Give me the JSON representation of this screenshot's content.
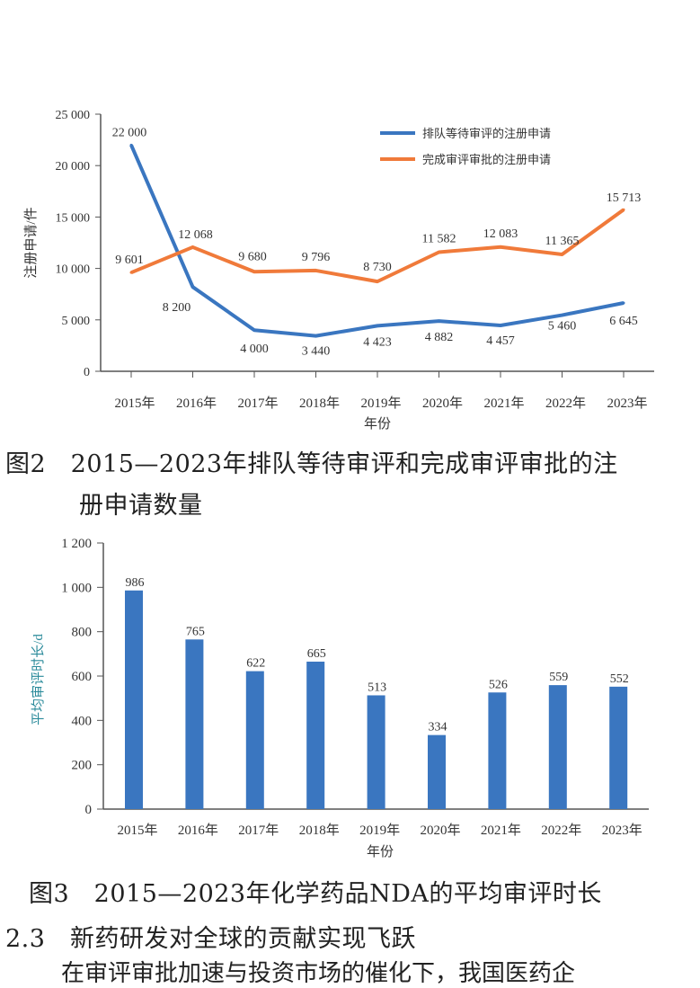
{
  "colors": {
    "blue": "#3a76c0",
    "orange": "#f07a3a",
    "axis": "#555555",
    "ylabel2": "#2a8a9a"
  },
  "figure2": {
    "caption_line1": "图2　2015—2023年排队等待审评和完成审评审批的注",
    "caption_line2": "册申请数量"
  },
  "figure3": {
    "caption": "图3　2015—2023年化学药品NDA的平均审评时长"
  },
  "section": {
    "heading": "2.3　新药研发对全球的贡献实现飞跃",
    "partial_text": "在审评审批加速与投资市场的催化下，我国医药企"
  },
  "chart_data": [
    {
      "type": "line",
      "title": "",
      "xlabel": "年份",
      "ylabel": "注册申请/件",
      "ylim": [
        0,
        25000
      ],
      "yticks": [
        "0",
        "5 000",
        "10 000",
        "15 000",
        "20 000",
        "25 000"
      ],
      "ytick_values": [
        0,
        5000,
        10000,
        15000,
        20000,
        25000
      ],
      "categories": [
        "2015年",
        "2016年",
        "2017年",
        "2018年",
        "2019年",
        "2020年",
        "2021年",
        "2022年",
        "2023年"
      ],
      "legend_position": "top-right",
      "series": [
        {
          "name": "排队等待审评的注册申请",
          "color": "#3a76c0",
          "values": [
            22000,
            8200,
            4000,
            3440,
            4423,
            4882,
            4457,
            5460,
            6645
          ],
          "labels": [
            "22 000",
            "8 200",
            "4 000",
            "3 440",
            "4 423",
            "4 882",
            "4 457",
            "5 460",
            "6 645"
          ]
        },
        {
          "name": "完成审评审批的注册申请",
          "color": "#f07a3a",
          "values": [
            9601,
            12068,
            9680,
            9796,
            8730,
            11582,
            12083,
            11365,
            15713
          ],
          "labels": [
            "9 601",
            "12 068",
            "9 680",
            "9 796",
            "8 730",
            "11 582",
            "12 083",
            "11 365",
            "15 713"
          ]
        }
      ]
    },
    {
      "type": "bar",
      "title": "",
      "xlabel": "年份",
      "ylabel": "平均审评时长/d",
      "ylim": [
        0,
        1200
      ],
      "yticks": [
        "0",
        "200",
        "400",
        "600",
        "800",
        "1 000",
        "1 200"
      ],
      "ytick_values": [
        0,
        200,
        400,
        600,
        800,
        1000,
        1200
      ],
      "categories": [
        "2015年",
        "2016年",
        "2017年",
        "2018年",
        "2019年",
        "2020年",
        "2021年",
        "2022年",
        "2023年"
      ],
      "values": [
        986,
        765,
        622,
        665,
        513,
        334,
        526,
        559,
        552
      ],
      "color": "#3a76c0"
    }
  ]
}
